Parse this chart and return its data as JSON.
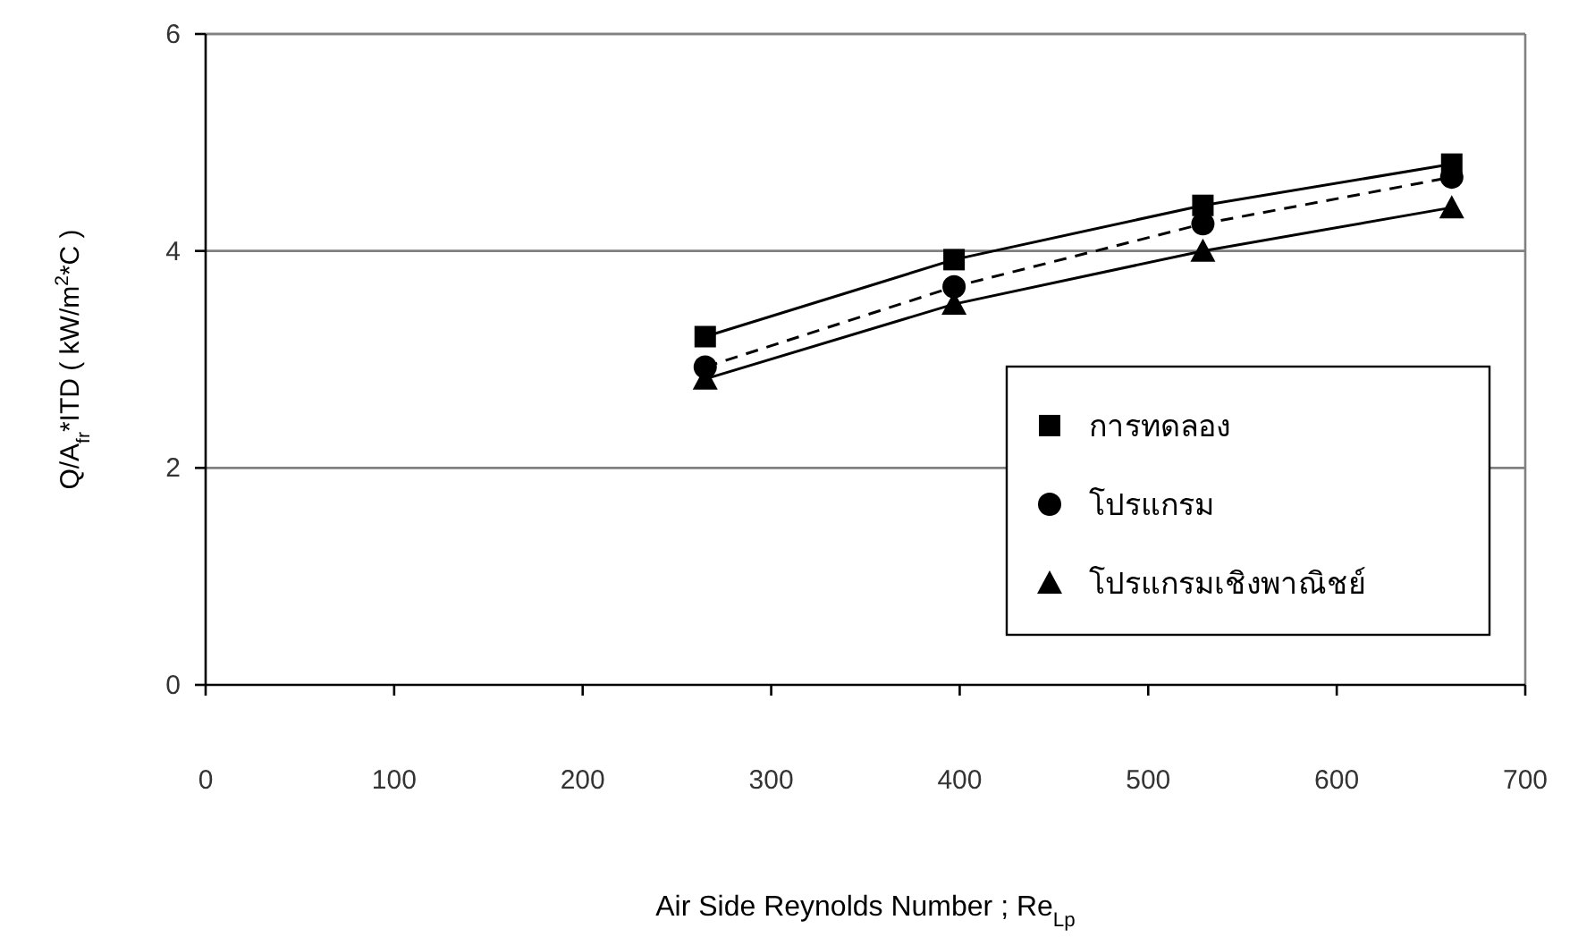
{
  "chart_data": {
    "type": "line",
    "xlabel": "Air Side Reynolds Number ; Re$_{Lp}$",
    "ylabel": "Q/A$_{fr}$*ITD ( kW/m$^{2}$*C )",
    "x": [
      265,
      397,
      529,
      661
    ],
    "xlim": [
      0,
      700
    ],
    "xticks": [
      0,
      100,
      200,
      300,
      400,
      500,
      600,
      700
    ],
    "ylim": [
      0,
      6
    ],
    "yticks": [
      0,
      2,
      4,
      6
    ],
    "grid": "y",
    "legend": "right",
    "series": [
      {
        "name": "การทดลอง",
        "color": "#000000",
        "marker": "square",
        "line_style": "solid",
        "values": [
          3.21,
          3.92,
          4.42,
          4.8
        ]
      },
      {
        "name": "โปรแกรม",
        "color": "#000000",
        "marker": "circle",
        "line_style": "dashed",
        "values": [
          2.93,
          3.67,
          4.25,
          4.68
        ]
      },
      {
        "name": "โปรแกรมเชิงพาณิชย์",
        "color": "#000000",
        "marker": "triangle",
        "line_style": "solid",
        "values": [
          2.82,
          3.51,
          4.0,
          4.4
        ]
      }
    ]
  }
}
